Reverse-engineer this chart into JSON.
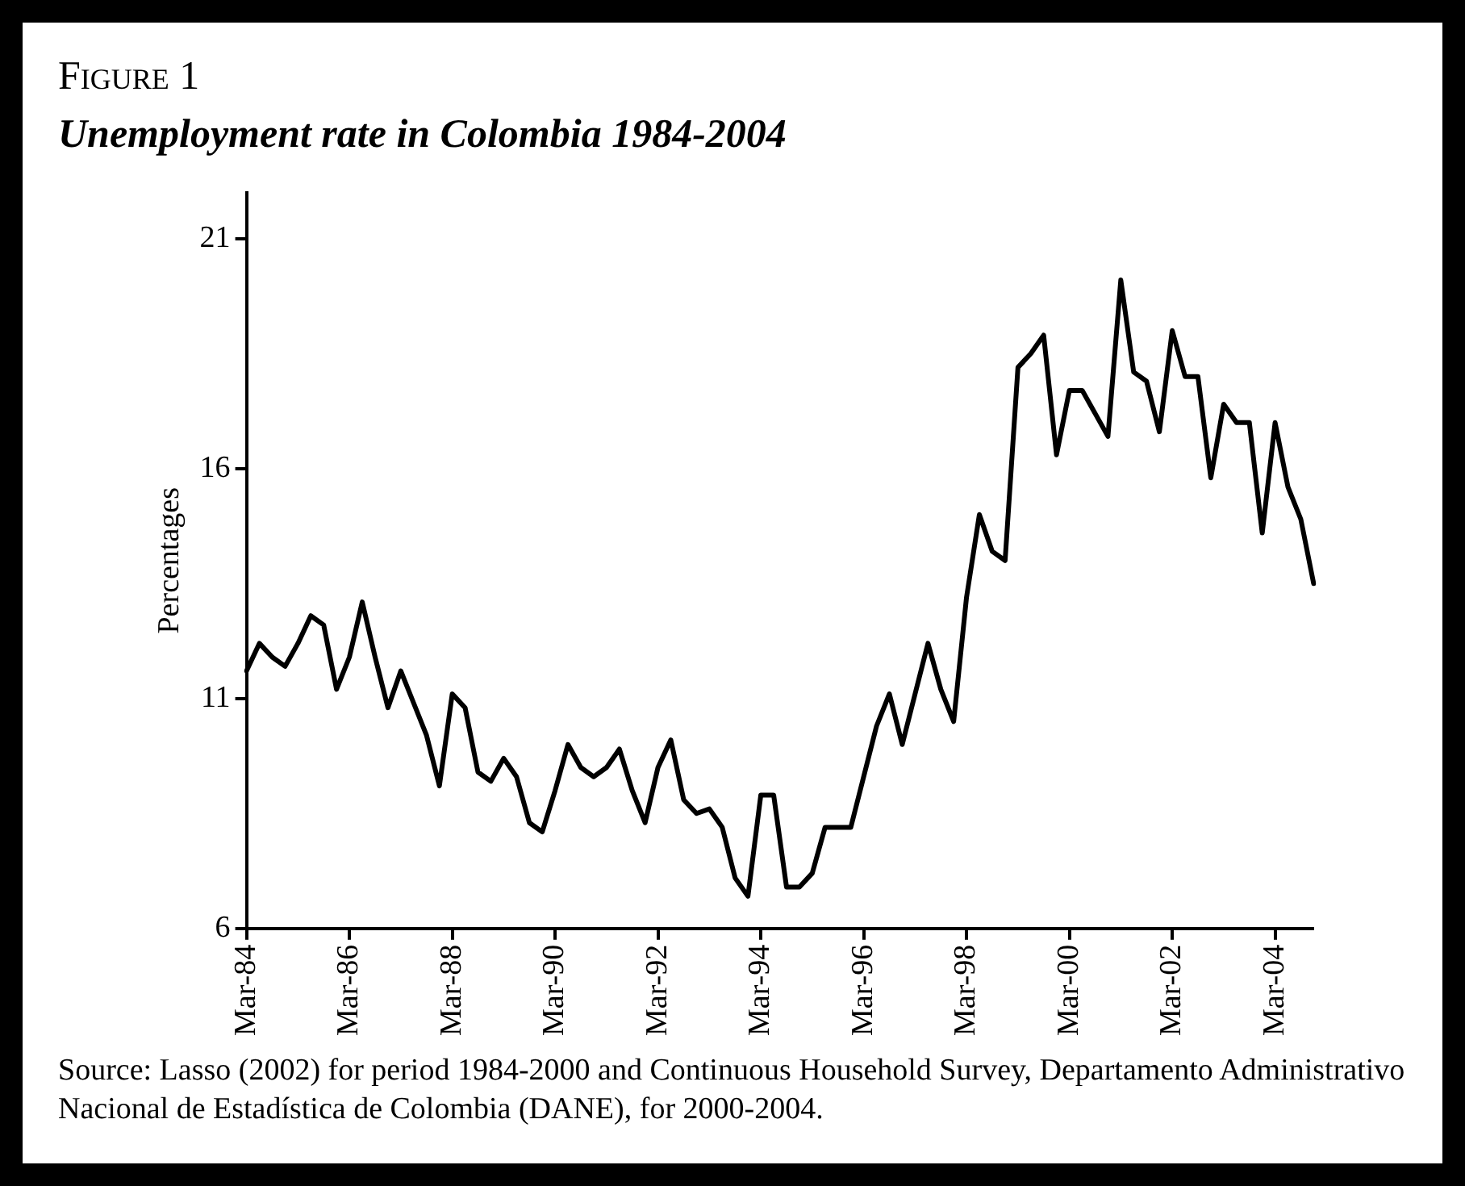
{
  "chart_data": {
    "type": "line",
    "title": "Figure 1",
    "subtitle": "Unemployment rate in Colombia 1984-2004",
    "ylabel": "Percentages",
    "annotations": [
      "Source: Lasso (2002) for period 1984-2000 and Continuous Household Survey, Departamento Administrativo Nacional de Estadística de Colombia (DANE), for 2000-2004."
    ],
    "categories": [
      "Mar-84",
      null,
      null,
      null,
      null,
      null,
      null,
      null,
      "Mar-86",
      null,
      null,
      null,
      null,
      null,
      null,
      null,
      "Mar-88",
      null,
      null,
      null,
      null,
      null,
      null,
      null,
      "Mar-90",
      null,
      null,
      null,
      null,
      null,
      null,
      null,
      "Mar-92",
      null,
      null,
      null,
      null,
      null,
      null,
      null,
      "Mar-94",
      null,
      null,
      null,
      null,
      null,
      null,
      null,
      "Mar-96",
      null,
      null,
      null,
      null,
      null,
      null,
      null,
      "Mar-98",
      null,
      null,
      null,
      null,
      null,
      null,
      null,
      "Mar-00",
      null,
      null,
      null,
      null,
      null,
      null,
      null,
      "Mar-02",
      null,
      null,
      null,
      null,
      null,
      null,
      null,
      "Mar-04",
      null,
      null,
      null
    ],
    "series": [
      {
        "color": "#000000",
        "values": [
          11.6,
          12.2,
          11.9,
          11.7,
          12.2,
          12.8,
          12.6,
          11.2,
          11.9,
          13.1,
          11.9,
          10.8,
          11.6,
          10.9,
          10.2,
          9.1,
          11.1,
          10.8,
          9.4,
          9.2,
          9.7,
          9.3,
          8.3,
          8.1,
          9.0,
          10.0,
          9.5,
          9.3,
          9.5,
          9.9,
          9.0,
          8.3,
          9.5,
          10.1,
          8.8,
          8.5,
          8.6,
          8.2,
          7.1,
          6.7,
          8.9,
          8.9,
          6.9,
          6.9,
          7.2,
          8.2,
          8.2,
          8.2,
          9.3,
          10.4,
          11.1,
          10.0,
          11.1,
          12.2,
          11.2,
          10.5,
          13.2,
          15.0,
          14.2,
          14.0,
          18.2,
          18.5,
          18.9,
          16.3,
          17.7,
          17.7,
          17.2,
          16.7,
          20.1,
          18.1,
          17.9,
          16.8,
          19.0,
          18.0,
          18.0,
          15.8,
          17.4,
          17.0,
          17.0,
          14.6,
          17.0,
          15.6,
          14.9,
          13.5
        ]
      }
    ],
    "ylim": [
      6,
      22
    ],
    "yticks": [
      6,
      11,
      16,
      21
    ],
    "grid": false,
    "legend": false,
    "marker": "none",
    "line_style": "solid"
  }
}
